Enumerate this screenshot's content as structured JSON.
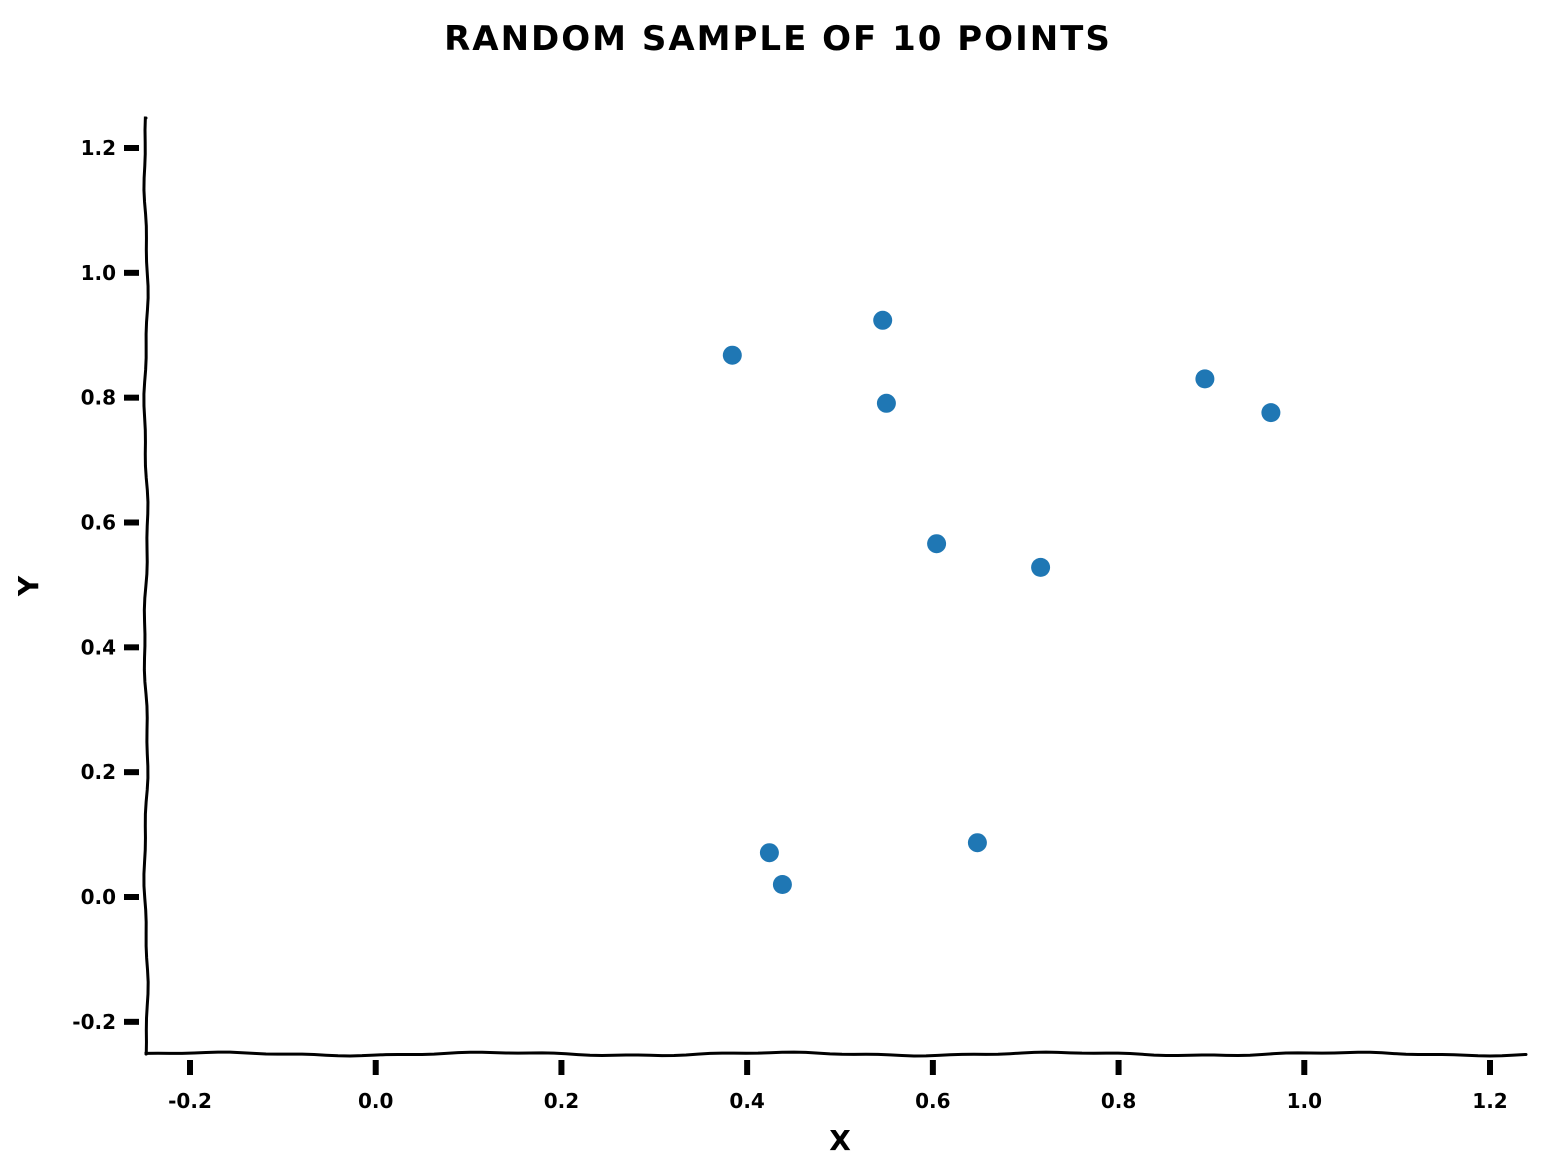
{
  "chart_data": {
    "type": "scatter",
    "title": "RANDOM SAMPLE OF 10 POINTS",
    "xlabel": "X",
    "ylabel": "Y",
    "xlim": [
      -0.25,
      1.25
    ],
    "ylim": [
      -0.25,
      1.25
    ],
    "x_ticks": [
      "-0.2",
      "0.0",
      "0.2",
      "0.4",
      "0.6",
      "0.8",
      "1.0",
      "1.2"
    ],
    "y_ticks": [
      "-0.2",
      "0.0",
      "0.2",
      "0.4",
      "0.6",
      "0.8",
      "1.0",
      "1.2"
    ],
    "x_tick_values": [
      -0.2,
      0.0,
      0.2,
      0.4,
      0.6,
      0.8,
      1.0,
      1.2
    ],
    "y_tick_values": [
      -0.2,
      0.0,
      0.2,
      0.4,
      0.6,
      0.8,
      1.0,
      1.2
    ],
    "points": [
      {
        "x": 0.384,
        "y": 0.868
      },
      {
        "x": 0.546,
        "y": 0.924
      },
      {
        "x": 0.55,
        "y": 0.791
      },
      {
        "x": 0.893,
        "y": 0.83
      },
      {
        "x": 0.964,
        "y": 0.776
      },
      {
        "x": 0.604,
        "y": 0.566
      },
      {
        "x": 0.716,
        "y": 0.528
      },
      {
        "x": 0.424,
        "y": 0.071
      },
      {
        "x": 0.438,
        "y": 0.02
      },
      {
        "x": 0.648,
        "y": 0.087
      }
    ],
    "marker_color": "#1f77b4",
    "grid": false,
    "legend": "none",
    "spines": [
      "left",
      "bottom"
    ]
  }
}
